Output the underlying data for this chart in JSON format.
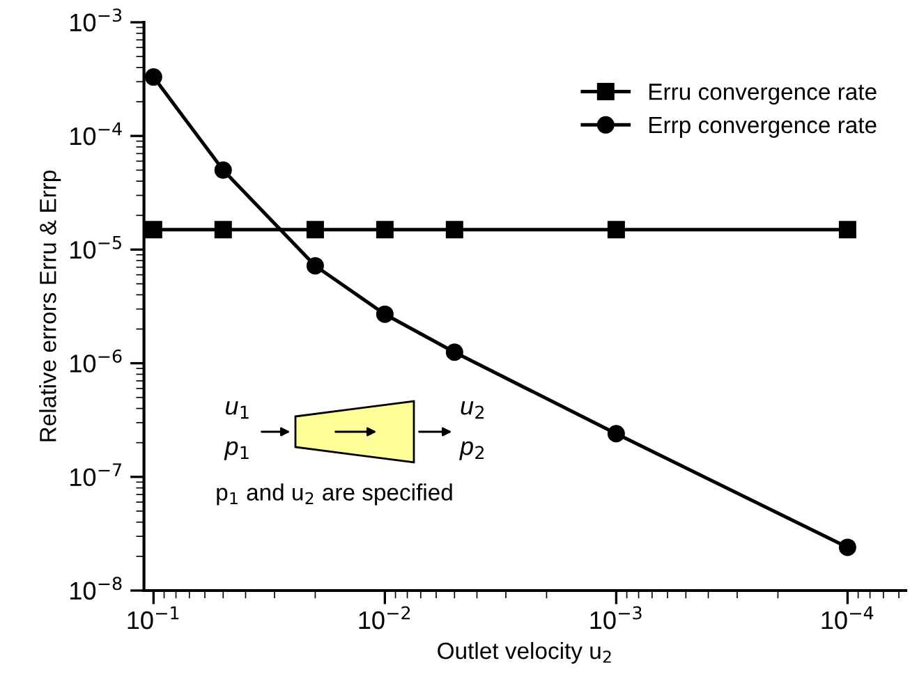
{
  "chart_data": {
    "type": "line",
    "xlabel": "Outlet velocity u$_{2}$",
    "ylabel": "Relative errors Erru & Errp",
    "x": [
      0.1,
      0.05,
      0.02,
      0.01,
      0.005,
      0.001,
      0.0001
    ],
    "series": [
      {
        "name": "Erru convergence rate",
        "color": "#000000",
        "marker": "square",
        "values": [
          1.5e-05,
          1.5e-05,
          1.5e-05,
          1.5e-05,
          1.5e-05,
          1.5e-05,
          1.5e-05
        ]
      },
      {
        "name": "Errp convergence rate",
        "color": "#000000",
        "marker": "circle",
        "values": [
          0.00033,
          5e-05,
          7.2e-06,
          2.7e-06,
          1.25e-06,
          2.4e-07,
          2.4e-08
        ]
      }
    ],
    "log": "xy",
    "xlim": [
      0.11,
      5.6e-05
    ],
    "ylim": [
      1e-08,
      0.001
    ],
    "xticks": [
      {
        "value": 0.1,
        "label": "10$^{−1}$"
      },
      {
        "value": 0.01,
        "label": "10$^{−2}$"
      },
      {
        "value": 0.001,
        "label": "10$^{−3}$"
      },
      {
        "value": 0.0001,
        "label": "10$^{−4}$"
      }
    ],
    "yticks": [
      {
        "value": 1e-08,
        "label": "10$^{−8}$"
      },
      {
        "value": 1e-07,
        "label": "10$^{−7}$"
      },
      {
        "value": 1e-06,
        "label": "10$^{−6}$"
      },
      {
        "value": 1e-05,
        "label": "10$^{−5}$"
      },
      {
        "value": 0.0001,
        "label": "10$^{−4}$"
      },
      {
        "value": 0.001,
        "label": "10$^{−3}$"
      }
    ],
    "grid": false,
    "legend": "top right",
    "line_style": "solid",
    "annotations": [
      "u$_{1}$",
      "p$_{1}$",
      "u$_{2}$",
      "p$_{2}$",
      "p$_{1}$ and u$_{2}$ are specified"
    ]
  }
}
